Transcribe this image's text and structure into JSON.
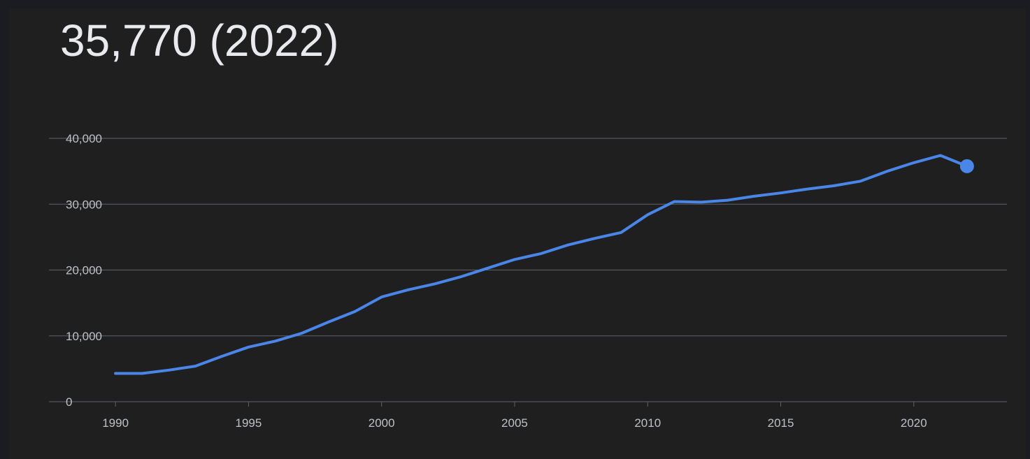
{
  "headline": {
    "value": "35,770",
    "year_label": "(2022)"
  },
  "colors": {
    "background": "#1f1f1f",
    "line": "#4a86e8",
    "grid": "#5f6368",
    "text": "#e8eaed",
    "tick_text": "#bdc1c6"
  },
  "chart_data": {
    "type": "line",
    "title": "35,770 (2022)",
    "xlabel": "",
    "ylabel": "",
    "xlim": [
      1987.5,
      2023.5
    ],
    "ylim": [
      0,
      40000
    ],
    "x_ticks": [
      1990,
      1995,
      2000,
      2005,
      2010,
      2015,
      2020
    ],
    "x_tick_labels": [
      "1990",
      "1995",
      "2000",
      "2005",
      "2010",
      "2015",
      "2020"
    ],
    "y_ticks": [
      0,
      10000,
      20000,
      30000,
      40000
    ],
    "y_tick_labels": [
      "0",
      "10,000",
      "20,000",
      "30,000",
      "40,000"
    ],
    "grid": true,
    "legend": "none",
    "highlight_last_point": true,
    "series": [
      {
        "x": [
          1990,
          1991,
          1992,
          1993,
          1994,
          1995,
          1996,
          1997,
          1998,
          1999,
          2000,
          2001,
          2002,
          2003,
          2004,
          2005,
          2006,
          2007,
          2008,
          2009,
          2010,
          2011,
          2012,
          2013,
          2014,
          2015,
          2016,
          2017,
          2018,
          2019,
          2020,
          2021,
          2022
        ],
        "values": [
          4300,
          4300,
          4800,
          5400,
          6900,
          8300,
          9200,
          10400,
          12100,
          13700,
          15900,
          17000,
          17900,
          19000,
          20300,
          21600,
          22500,
          23800,
          24800,
          25700,
          28400,
          30400,
          30300,
          30600,
          31200,
          31700,
          32300,
          32800,
          33500,
          35000,
          36300,
          37400,
          35770
        ]
      }
    ]
  }
}
